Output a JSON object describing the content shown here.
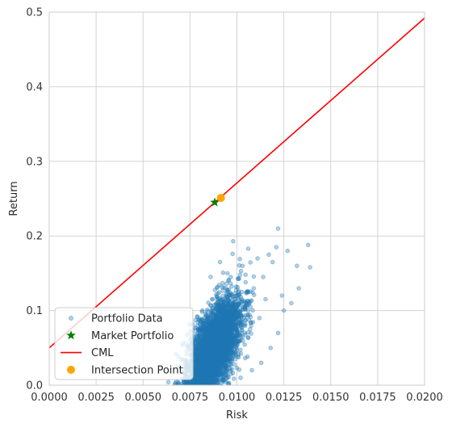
{
  "chart_data": {
    "type": "scatter",
    "xlabel": "Risk",
    "ylabel": "Return",
    "xlim": [
      0,
      0.02
    ],
    "ylim": [
      0,
      0.5
    ],
    "grid": true,
    "x_ticks": [
      "0.0000",
      "0.0025",
      "0.0050",
      "0.0075",
      "0.0100",
      "0.0125",
      "0.0150",
      "0.0175",
      "0.0200"
    ],
    "y_ticks": [
      "0.0",
      "0.1",
      "0.2",
      "0.3",
      "0.4",
      "0.5"
    ],
    "legend_position": "lower-left",
    "series": [
      {
        "name": "Portfolio Data",
        "kind": "scatter",
        "color": "#1f77b4",
        "opacity": 0.35,
        "cloud": {
          "center": [
            0.0088,
            0.05
          ],
          "spread": [
            0.0007,
            0.033
          ],
          "correlation": 0.6,
          "count": 4000
        },
        "points": [
          [
            0.0122,
            0.21
          ],
          [
            0.0138,
            0.188
          ],
          [
            0.0127,
            0.18
          ],
          [
            0.0121,
            0.185
          ],
          [
            0.0117,
            0.175
          ],
          [
            0.0132,
            0.16
          ],
          [
            0.0139,
            0.158
          ],
          [
            0.0133,
            0.13
          ],
          [
            0.0129,
            0.11
          ],
          [
            0.0124,
            0.12
          ],
          [
            0.0119,
            0.165
          ],
          [
            0.0111,
            0.17
          ],
          [
            0.0106,
            0.183
          ],
          [
            0.0098,
            0.193
          ],
          [
            0.0103,
            0.16
          ],
          [
            0.0114,
            0.145
          ],
          [
            0.0125,
            0.1
          ],
          [
            0.0122,
            0.07
          ],
          [
            0.0118,
            0.05
          ],
          [
            0.0113,
            0.03
          ],
          [
            0.0108,
            0.02
          ],
          [
            0.0102,
            0.01
          ],
          [
            0.0107,
            0.075
          ],
          [
            0.0112,
            0.09
          ],
          [
            0.0109,
            0.13
          ],
          [
            0.0095,
            0.15
          ],
          [
            0.0091,
            0.165
          ],
          [
            0.0086,
            0.145
          ]
        ]
      },
      {
        "name": "Market Portfolio",
        "kind": "star",
        "color": "#008000",
        "points": [
          [
            0.00882,
            0.245
          ]
        ]
      },
      {
        "name": "CML",
        "kind": "line",
        "color": "#ff0000",
        "points": [
          [
            0.0,
            0.05
          ],
          [
            0.02,
            0.492
          ]
        ]
      },
      {
        "name": "Intersection Point",
        "kind": "circle",
        "color": "#ffa500",
        "points": [
          [
            0.00915,
            0.251
          ]
        ]
      }
    ]
  }
}
